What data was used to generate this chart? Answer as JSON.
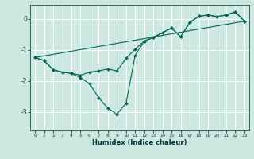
{
  "xlabel": "Humidex (Indice chaleur)",
  "bg_color": "#cce8e0",
  "grid_color": "#ffffff",
  "line_color": "#006655",
  "xlim": [
    -0.5,
    23.5
  ],
  "ylim": [
    -3.6,
    0.45
  ],
  "xticks": [
    0,
    1,
    2,
    3,
    4,
    5,
    6,
    7,
    8,
    9,
    10,
    11,
    12,
    13,
    14,
    15,
    16,
    17,
    18,
    19,
    20,
    21,
    22,
    23
  ],
  "yticks": [
    0,
    -1,
    -2,
    -3
  ],
  "line1_x": [
    0,
    1,
    2,
    3,
    4,
    5,
    6,
    7,
    8,
    9,
    10,
    11,
    12,
    13,
    14,
    15,
    16,
    17,
    18,
    19,
    20,
    21,
    22,
    23
  ],
  "line1_y": [
    -1.25,
    -1.35,
    -1.65,
    -1.72,
    -1.76,
    -1.9,
    -2.1,
    -2.55,
    -2.88,
    -3.08,
    -2.72,
    -1.18,
    -0.72,
    -0.6,
    -0.45,
    -0.3,
    -0.58,
    -0.12,
    0.08,
    0.12,
    0.07,
    0.12,
    0.22,
    -0.08
  ],
  "line2_x": [
    0,
    1,
    2,
    3,
    4,
    5,
    6,
    7,
    8,
    9,
    10,
    11,
    12,
    13,
    14,
    15,
    16,
    17,
    18,
    19,
    20,
    21,
    22,
    23
  ],
  "line2_y": [
    -1.25,
    -1.35,
    -1.65,
    -1.72,
    -1.76,
    -1.82,
    -1.72,
    -1.68,
    -1.62,
    -1.68,
    -1.28,
    -0.98,
    -0.72,
    -0.6,
    -0.45,
    -0.3,
    -0.58,
    -0.12,
    0.08,
    0.12,
    0.07,
    0.12,
    0.22,
    -0.08
  ],
  "line3_x": [
    0,
    23
  ],
  "line3_y": [
    -1.25,
    -0.08
  ]
}
